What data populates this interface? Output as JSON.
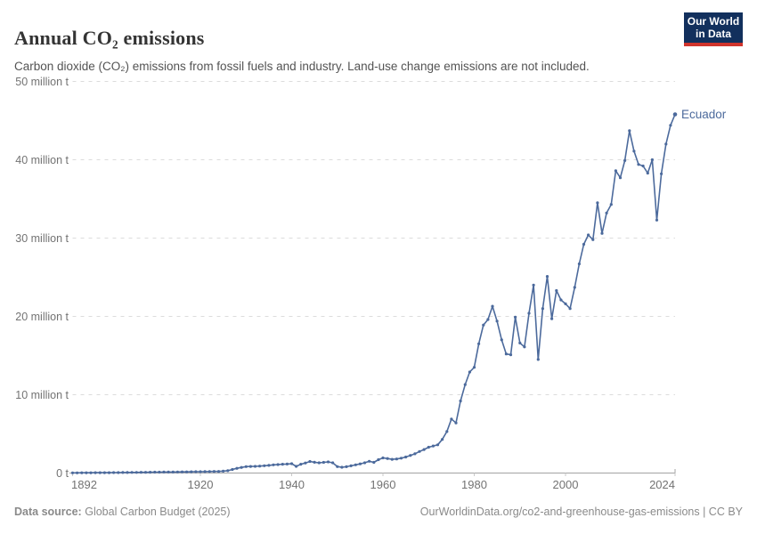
{
  "header": {
    "title": "Annual CO₂ emissions",
    "subtitle": "Carbon dioxide (CO₂) emissions from fossil fuels and industry. Land-use change emissions are not included."
  },
  "logo": {
    "line1": "Our World",
    "line2": "in Data",
    "bg_color": "#12305d",
    "stripe_color": "#d0342c"
  },
  "chart_data": {
    "type": "line",
    "title": "Annual CO₂ emissions",
    "xlabel": "",
    "ylabel": "million t",
    "ylim": [
      0,
      50
    ],
    "grid": true,
    "grid_color": "#dcdcdc",
    "axis_color": "#a3a3a3",
    "tick_text_color": "#737373",
    "legend_position": "end-of-line label",
    "x_start": 1892,
    "x_end": 2024,
    "xticks": [
      {
        "value": 1892,
        "label": "1892"
      },
      {
        "value": 1920,
        "label": "1920"
      },
      {
        "value": 1940,
        "label": "1940"
      },
      {
        "value": 1960,
        "label": "1960"
      },
      {
        "value": 1980,
        "label": "1980"
      },
      {
        "value": 2000,
        "label": "2000"
      },
      {
        "value": 2024,
        "label": "2024"
      }
    ],
    "yticks": [
      {
        "value": 0,
        "label": "0 t"
      },
      {
        "value": 10,
        "label": "10 million t"
      },
      {
        "value": 20,
        "label": "20 million t"
      },
      {
        "value": 30,
        "label": "30 million t"
      },
      {
        "value": 40,
        "label": "40 million t"
      },
      {
        "value": 50,
        "label": "50 million t"
      }
    ],
    "series": [
      {
        "name": "Ecuador",
        "color": "#4C6A9C",
        "unit": "million tonnes",
        "values": [
          0.02,
          0.02,
          0.03,
          0.03,
          0.03,
          0.04,
          0.04,
          0.05,
          0.05,
          0.06,
          0.06,
          0.07,
          0.07,
          0.08,
          0.08,
          0.09,
          0.09,
          0.1,
          0.11,
          0.11,
          0.12,
          0.13,
          0.13,
          0.14,
          0.15,
          0.15,
          0.16,
          0.17,
          0.17,
          0.18,
          0.19,
          0.2,
          0.21,
          0.24,
          0.3,
          0.45,
          0.6,
          0.72,
          0.82,
          0.84,
          0.85,
          0.89,
          0.93,
          0.98,
          1.04,
          1.08,
          1.12,
          1.15,
          1.19,
          0.85,
          1.12,
          1.28,
          1.48,
          1.38,
          1.31,
          1.36,
          1.42,
          1.31,
          0.82,
          0.74,
          0.81,
          0.92,
          1.04,
          1.17,
          1.31,
          1.5,
          1.36,
          1.7,
          1.93,
          1.85,
          1.75,
          1.8,
          1.9,
          2.05,
          2.25,
          2.45,
          2.75,
          3.0,
          3.3,
          3.45,
          3.6,
          4.3,
          5.3,
          6.9,
          6.4,
          9.2,
          11.3,
          12.9,
          13.5,
          16.5,
          18.9,
          19.6,
          21.3,
          19.4,
          17.0,
          15.2,
          15.1,
          19.9,
          16.6,
          16.1,
          20.4,
          24.0,
          14.5,
          21.0,
          25.1,
          19.7,
          23.3,
          22.1,
          21.6,
          21.0,
          23.7,
          26.7,
          29.2,
          30.4,
          29.8,
          34.5,
          30.6,
          33.2,
          34.3,
          38.6,
          37.7,
          39.9,
          43.7,
          41.1,
          39.4,
          39.2,
          38.3,
          40.0,
          32.3,
          38.2,
          42.0,
          44.4,
          45.8
        ]
      }
    ]
  },
  "footer": {
    "source_label": "Data source:",
    "source_value": "Global Carbon Budget (2025)",
    "license": "OurWorldinData.org/co2-and-greenhouse-gas-emissions | CC BY"
  }
}
